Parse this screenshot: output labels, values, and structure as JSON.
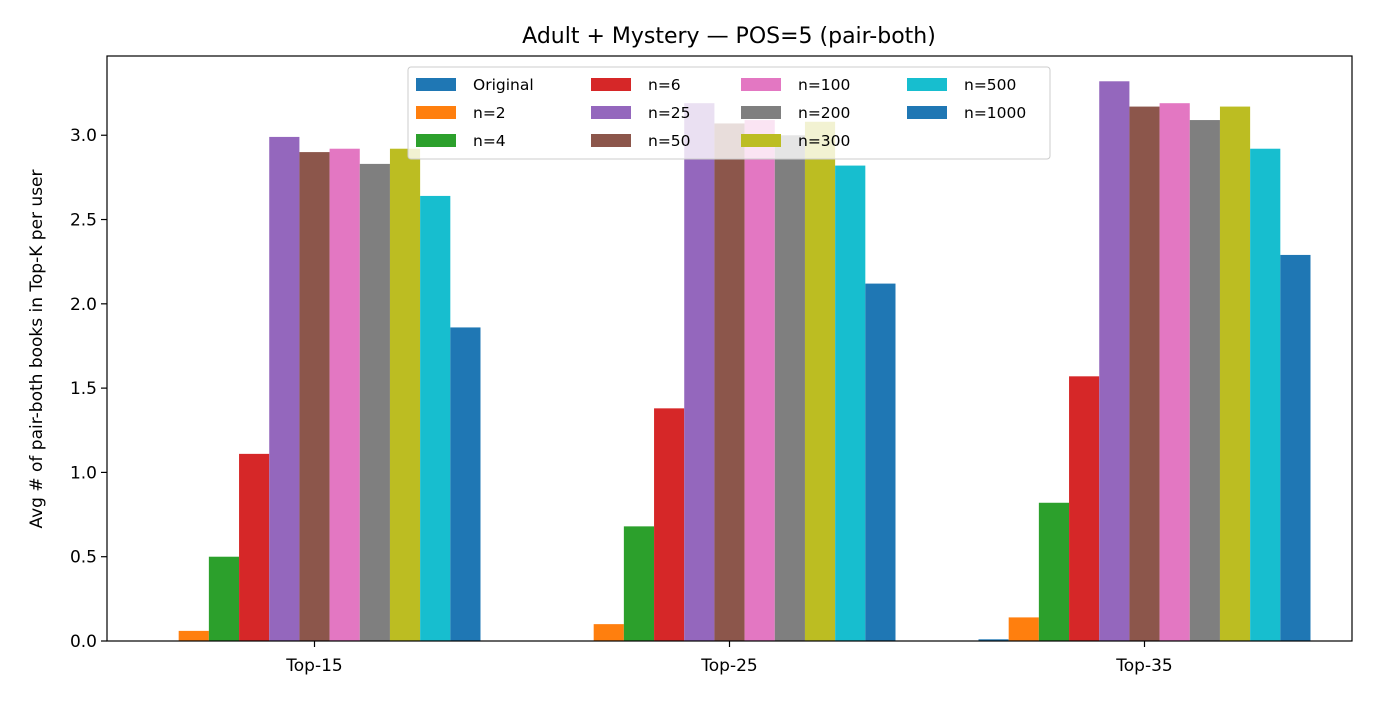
{
  "chart_data": {
    "type": "bar",
    "title": "Adult + Mystery — POS=5 (pair-both)",
    "xlabel": "",
    "ylabel": "Avg # of pair-both books in Top-K per user",
    "categories": [
      "Top-15",
      "Top-25",
      "Top-35"
    ],
    "ylim": [
      0,
      3.47
    ],
    "yticks": [
      "0.0",
      "0.5",
      "1.0",
      "1.5",
      "2.0",
      "2.5",
      "3.0"
    ],
    "grid": false,
    "legend": {
      "placement": "top-center",
      "columns": 4
    },
    "series": [
      {
        "name": "Original",
        "color": "#1f77b4",
        "values": [
          0.0,
          0.0,
          0.01
        ]
      },
      {
        "name": "n=2",
        "color": "#ff7f0e",
        "values": [
          0.06,
          0.1,
          0.14
        ]
      },
      {
        "name": "n=4",
        "color": "#2ca02c",
        "values": [
          0.5,
          0.68,
          0.82
        ]
      },
      {
        "name": "n=6",
        "color": "#d62728",
        "values": [
          1.11,
          1.38,
          1.57
        ]
      },
      {
        "name": "n=25",
        "color": "#9467bd",
        "values": [
          2.99,
          3.19,
          3.32
        ]
      },
      {
        "name": "n=50",
        "color": "#8c564b",
        "values": [
          2.9,
          3.07,
          3.17
        ]
      },
      {
        "name": "n=100",
        "color": "#e377c2",
        "values": [
          2.92,
          3.09,
          3.19
        ]
      },
      {
        "name": "n=200",
        "color": "#7f7f7f",
        "values": [
          2.83,
          3.0,
          3.09
        ]
      },
      {
        "name": "n=300",
        "color": "#bcbd22",
        "values": [
          2.92,
          3.08,
          3.17
        ]
      },
      {
        "name": "n=500",
        "color": "#17becf",
        "values": [
          2.64,
          2.82,
          2.92
        ]
      },
      {
        "name": "n=1000",
        "color": "#1f77b4",
        "values": [
          1.86,
          2.12,
          2.29
        ]
      }
    ]
  }
}
